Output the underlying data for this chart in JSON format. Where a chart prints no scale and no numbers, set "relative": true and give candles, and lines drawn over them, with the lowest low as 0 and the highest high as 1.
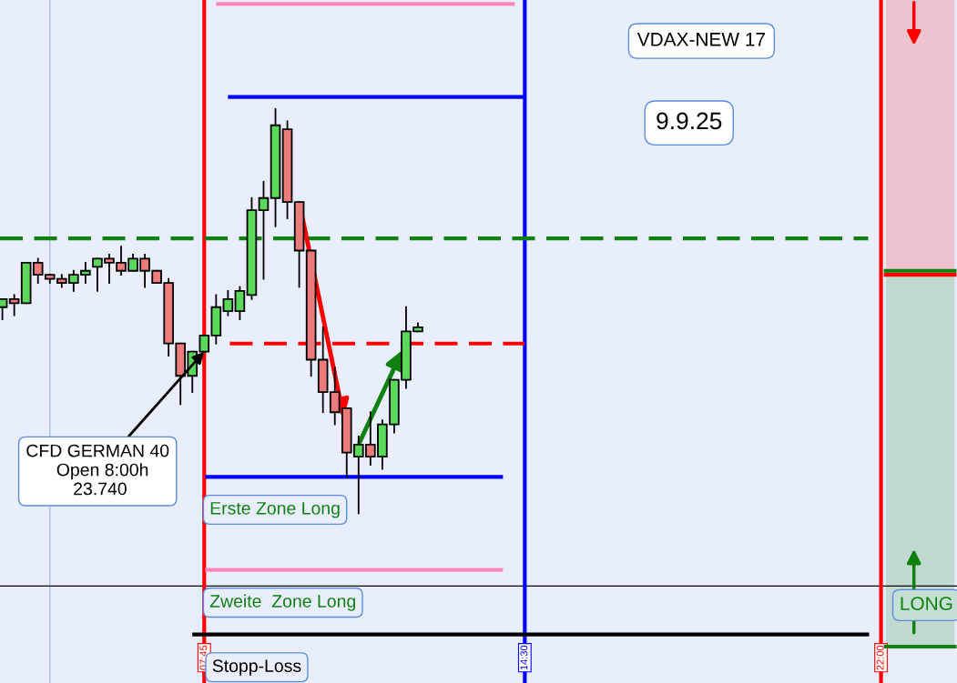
{
  "chart_data": {
    "type": "candlestick",
    "relative": true,
    "tick_labels": "x",
    "xticks": [
      {
        "value": 7.75,
        "label": "07:45"
      },
      {
        "value": 14.5,
        "label": "14:30"
      },
      {
        "value": 22,
        "label": "22:00"
      }
    ],
    "x": [
      3.5,
      3.75,
      4.0,
      4.25,
      4.5,
      4.75,
      5.0,
      5.25,
      5.5,
      5.75,
      6.0,
      6.25,
      6.5,
      6.75,
      7.0,
      7.25,
      7.5,
      7.75,
      8.0,
      8.25,
      8.5,
      8.75,
      9.0,
      9.25,
      9.5,
      9.75,
      10.0,
      10.25,
      10.5,
      10.75,
      11.0,
      11.25,
      11.5,
      11.75,
      12.0,
      12.25
    ],
    "xlim": [
      3.45,
      23.6
    ],
    "ohlc": [
      [
        0.51,
        0.53,
        0.48,
        0.53
      ],
      [
        0.53,
        0.54,
        0.49,
        0.52
      ],
      [
        0.52,
        0.62,
        0.52,
        0.62
      ],
      [
        0.62,
        0.63,
        0.57,
        0.59
      ],
      [
        0.59,
        0.59,
        0.57,
        0.58
      ],
      [
        0.58,
        0.59,
        0.56,
        0.57
      ],
      [
        0.57,
        0.6,
        0.55,
        0.59
      ],
      [
        0.59,
        0.62,
        0.57,
        0.6
      ],
      [
        0.61,
        0.63,
        0.55,
        0.63
      ],
      [
        0.63,
        0.64,
        0.57,
        0.62
      ],
      [
        0.62,
        0.66,
        0.59,
        0.6
      ],
      [
        0.6,
        0.64,
        0.6,
        0.63
      ],
      [
        0.63,
        0.64,
        0.56,
        0.6
      ],
      [
        0.6,
        0.6,
        0.57,
        0.57
      ],
      [
        0.57,
        0.58,
        0.39,
        0.42
      ],
      [
        0.42,
        0.42,
        0.27,
        0.34
      ],
      [
        0.34,
        0.4,
        0.3,
        0.4
      ],
      [
        0.4,
        0.44,
        0.4,
        0.44
      ],
      [
        0.44,
        0.54,
        0.42,
        0.51
      ],
      [
        0.5,
        0.55,
        0.49,
        0.53
      ],
      [
        0.5,
        0.56,
        0.48,
        0.55
      ],
      [
        0.54,
        0.78,
        0.53,
        0.75
      ],
      [
        0.75,
        0.82,
        0.58,
        0.78
      ],
      [
        0.78,
        1.0,
        0.71,
        0.96
      ],
      [
        0.95,
        0.97,
        0.73,
        0.77
      ],
      [
        0.77,
        0.77,
        0.56,
        0.65
      ],
      [
        0.65,
        0.65,
        0.34,
        0.38
      ],
      [
        0.38,
        0.46,
        0.25,
        0.3
      ],
      [
        0.3,
        0.36,
        0.22,
        0.25
      ],
      [
        0.26,
        0.26,
        0.09,
        0.15
      ],
      [
        0.14,
        0.19,
        0,
        0.17
      ],
      [
        0.17,
        0.25,
        0.12,
        0.14
      ],
      [
        0.14,
        0.23,
        0.11,
        0.22
      ],
      [
        0.22,
        0.33,
        0.2,
        0.33
      ],
      [
        0.33,
        0.51,
        0.31,
        0.45
      ],
      [
        0.45,
        0.47,
        0.45,
        0.46
      ]
    ],
    "series": [
      {
        "type": "line",
        "x": [
          22.1,
          23.55
        ],
        "values": [
          0.59,
          0.59
        ],
        "lower": [
          0.59,
          0.59
        ],
        "upper": [
          1.27,
          1.27
        ],
        "color": "#ff0000",
        "line_style": "solid"
      },
      {
        "type": "line",
        "x": [
          22.1,
          23.55
        ],
        "values": [
          0.6,
          0.6
        ],
        "lower": [
          -0.33,
          -0.33
        ],
        "upper": [
          0.6,
          0.6
        ],
        "color": "#108010",
        "line_style": "solid"
      },
      {
        "type": "line",
        "x": [
          8.04,
          14.25
        ],
        "values": [
          1.26,
          1.26
        ],
        "color": "#ff88bb",
        "line_style": "solid"
      },
      {
        "type": "line",
        "x": [
          8.29,
          14.46
        ],
        "values": [
          1.03,
          1.03
        ],
        "color": "#0000ff",
        "line_style": "solid"
      },
      {
        "type": "line",
        "x": [
          3.45,
          21.73
        ],
        "values": [
          0.68,
          0.68
        ],
        "color": "#108010",
        "line_style": "dashed"
      },
      {
        "type": "line",
        "x": [
          8.29,
          14.5
        ],
        "values": [
          0.42,
          0.42
        ],
        "color": "#ff0000",
        "line_style": "dashed"
      },
      {
        "type": "line",
        "x": [
          7.81,
          14.0
        ],
        "values": [
          0.09,
          0.09
        ],
        "color": "#0000ff",
        "line_style": "solid"
      },
      {
        "type": "line",
        "x": [
          7.81,
          14.0
        ],
        "values": [
          -0.14,
          -0.14
        ],
        "color": "#ff88bb",
        "line_style": "solid"
      },
      {
        "type": "line",
        "x": [
          7.54,
          21.71
        ],
        "values": [
          -0.3,
          -0.3
        ],
        "color": "#000000",
        "line_style": "solid"
      },
      {
        "type": "line",
        "x": [
          22.1,
          23.55
        ],
        "values": [
          -0.33,
          -0.33
        ],
        "color": "#108010",
        "line_style": "solid"
      }
    ],
    "ylim": [
      -0.42,
      1.27
    ],
    "ref_lines": [
      {
        "axis": "x",
        "value": 4.5,
        "color": "#a8c0e8"
      },
      {
        "axis": "y",
        "value": -0.18,
        "color": "#000000"
      },
      {
        "axis": "x",
        "value": 7.75,
        "color": "#ff0000"
      },
      {
        "axis": "x",
        "value": 14.5,
        "color": "#0000ff"
      },
      {
        "axis": "x",
        "value": 22,
        "color": "#ff0000"
      }
    ],
    "annotations": [
      "VDAX-NEW 17",
      "9.9.25",
      {
        "text": "CFD GERMAN 40\n  Open 8:00h\n 23.740",
        "x": 7.75,
        "y": 0.4
      },
      {
        "text": "Erste Zone Long",
        "x": 7.81,
        "y": 0.09
      },
      {
        "text": "Zweite  Zone Long",
        "x": 7.81,
        "y": -0.14
      },
      {
        "text": "Stopp-Loss",
        "x": 7.54,
        "y": -0.3
      },
      "LONG"
    ]
  }
}
